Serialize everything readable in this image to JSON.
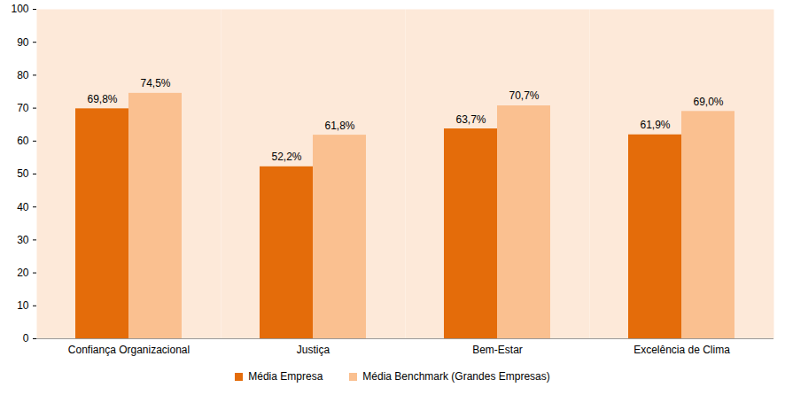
{
  "chart_data": {
    "type": "bar",
    "categories": [
      "Confiança Organizacional",
      "Justiça",
      "Bem-Estar",
      "Excelência de Clima"
    ],
    "series": [
      {
        "name": "Média Empresa",
        "color": "#e46c0a",
        "values": [
          69.8,
          52.2,
          63.7,
          61.9
        ],
        "value_labels": [
          "69,8%",
          "52,2%",
          "63,7%",
          "61,9%"
        ]
      },
      {
        "name": "Média Benchmark (Grandes Empresas)",
        "color": "#fac090",
        "values": [
          74.5,
          61.8,
          70.7,
          69.0
        ],
        "value_labels": [
          "74,5%",
          "61,8%",
          "70,7%",
          "69,0%"
        ]
      }
    ],
    "ylim": [
      0,
      100
    ],
    "yticks": [
      0,
      10,
      20,
      30,
      40,
      50,
      60,
      70,
      80,
      90,
      100
    ],
    "data_labels": true,
    "legend": "bottom",
    "grid": false
  }
}
